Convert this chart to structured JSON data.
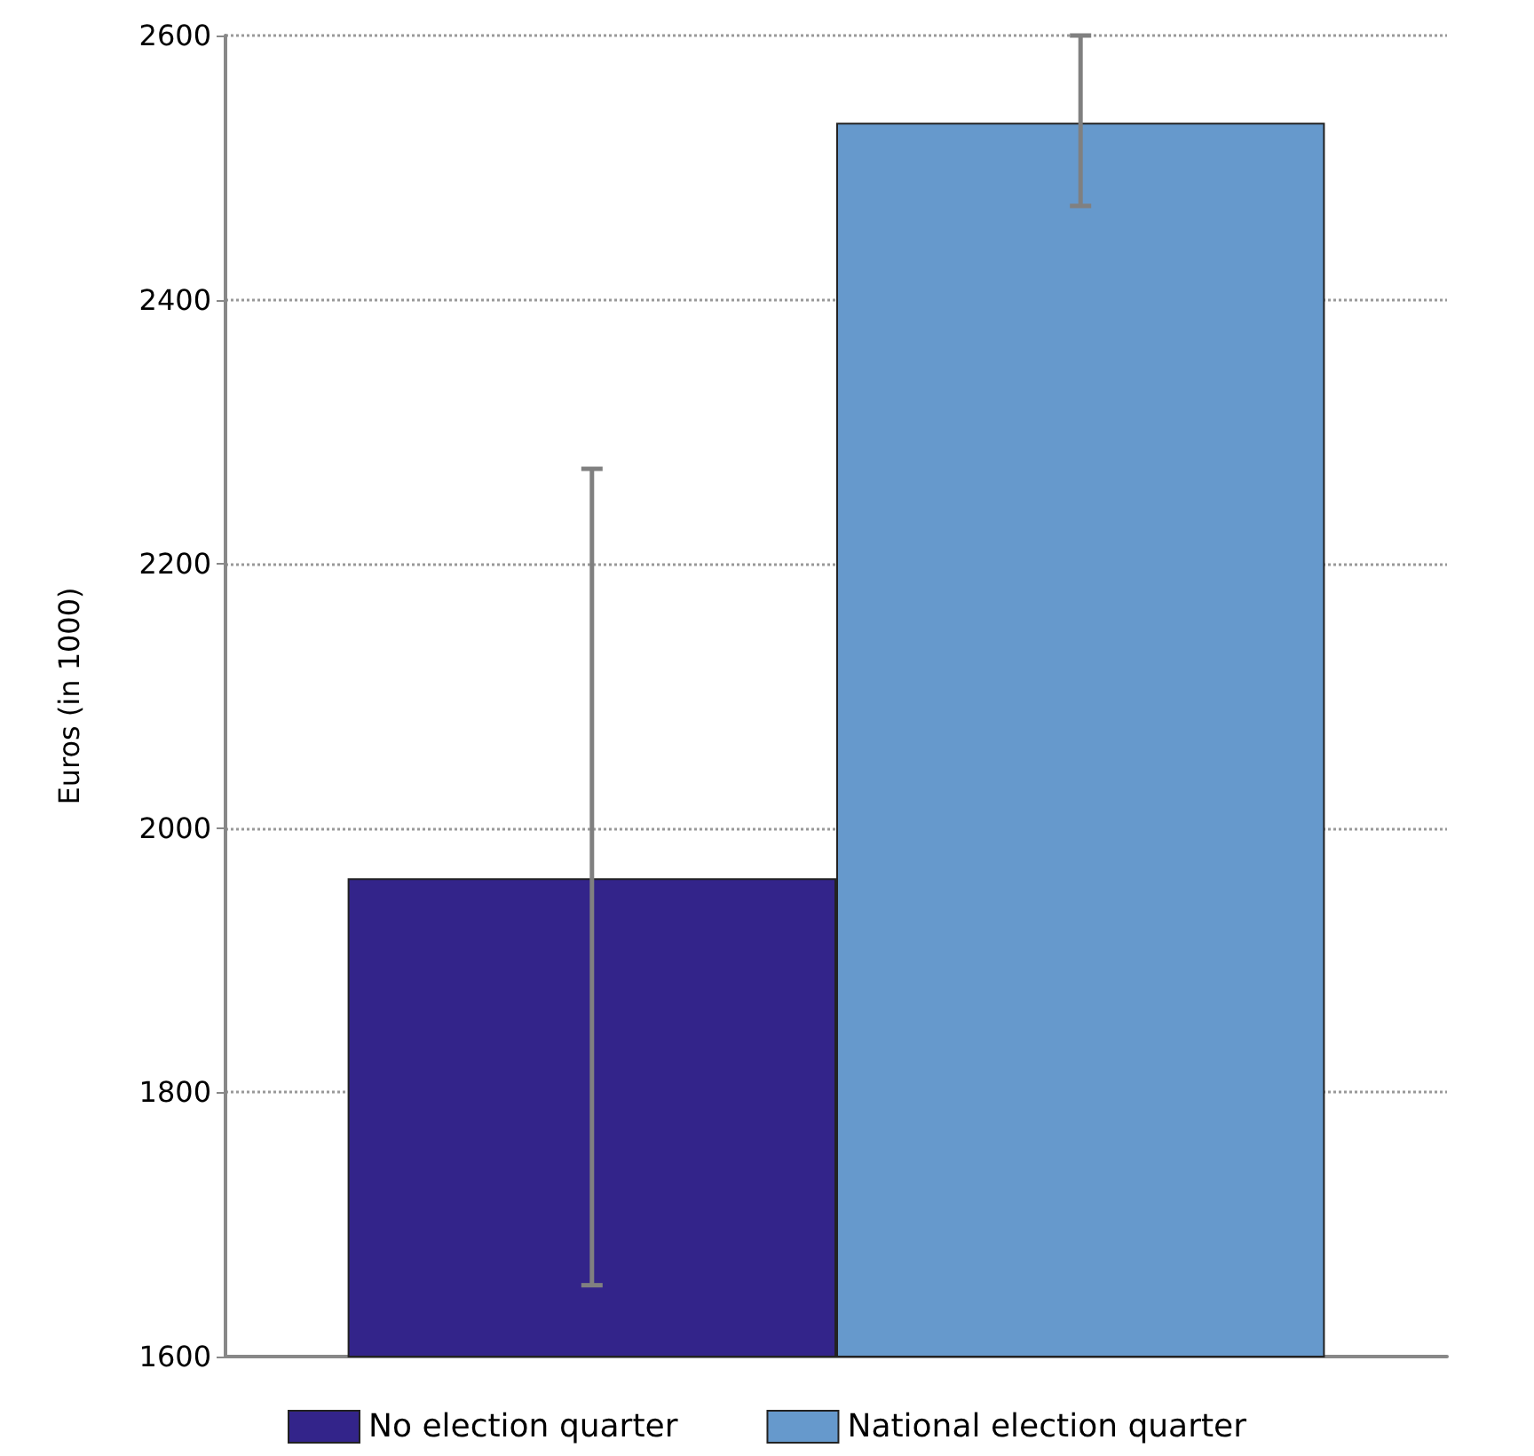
{
  "chart_data": {
    "type": "bar",
    "ylabel": "Euros (in 1000)",
    "categories": [
      null
    ],
    "series": [
      {
        "name": "No election quarter",
        "color": "#33248a",
        "values": [
          1962
        ],
        "errors": [
          [
            1654,
            2272
          ]
        ]
      },
      {
        "name": "National election quarter",
        "color": "#6699cc",
        "values": [
          2534
        ],
        "errors": [
          [
            2471,
            2600
          ]
        ]
      }
    ],
    "ylim": [
      1600,
      2600
    ],
    "yticks": [
      1600,
      1800,
      2000,
      2200,
      2400,
      2600
    ],
    "grid": "y",
    "legend": "bottom"
  }
}
